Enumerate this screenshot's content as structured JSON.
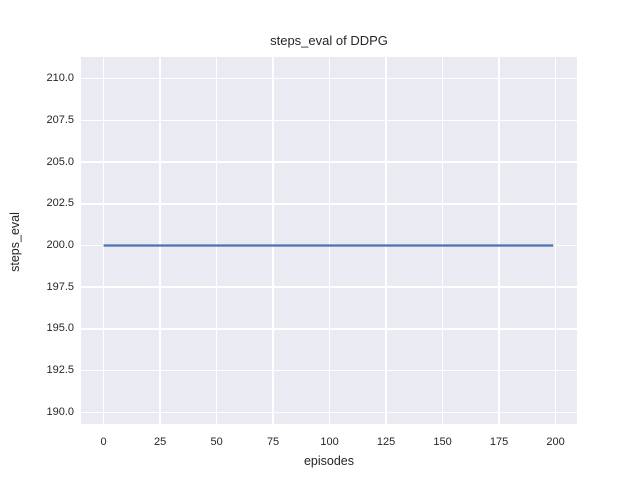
{
  "chart_data": {
    "type": "line",
    "title": "steps_eval of DDPG",
    "xlabel": "episodes",
    "ylabel": "steps_eval",
    "x_tick_values": [
      0,
      25,
      50,
      75,
      100,
      125,
      150,
      175,
      200
    ],
    "x_tick_labels": [
      "0",
      "25",
      "50",
      "75",
      "100",
      "125",
      "150",
      "175",
      "200"
    ],
    "y_tick_values": [
      210.0,
      207.5,
      205.0,
      202.5,
      200.0,
      197.5,
      195.0,
      192.5,
      190.0
    ],
    "y_tick_labels": [
      "210.0",
      "207.5",
      "205.0",
      "202.5",
      "200.0",
      "197.5",
      "195.0",
      "192.5",
      "190.0"
    ],
    "xlim": [
      -10,
      209.5
    ],
    "ylim": [
      189.3,
      211.3
    ],
    "grid": true,
    "legend": "none",
    "plot_bg": "#EAEAF2",
    "grid_color": "#FFFFFF",
    "text_color": "#262626",
    "series": [
      {
        "name": "DDPG",
        "x": [
          0,
          199
        ],
        "y": [
          200,
          200
        ],
        "color": "#4C72B0",
        "line_width": 2.2
      }
    ]
  }
}
